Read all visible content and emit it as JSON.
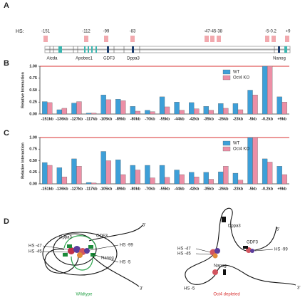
{
  "panel_labels": [
    "A",
    "B",
    "C",
    "D"
  ],
  "gene_map": {
    "hs_label": "HS:",
    "hs_sites": [
      "-151",
      "-112",
      "-99",
      "-83",
      "-47-45-38",
      "-5-0.2",
      "+9"
    ],
    "genes": [
      "Aicda",
      "Apobec1",
      "GDF3",
      "Dppa3",
      "Nanog"
    ]
  },
  "chart_data": [
    {
      "type": "bar",
      "y_label": "Relative Interaction",
      "categories": [
        "-151kb",
        "-136kb",
        "-127kb",
        "-117kb",
        "-105kb",
        "-89kb",
        "-80kb",
        "-70kb",
        "-55kb",
        "-44kb",
        "-42kb",
        "-35kb",
        "-26kb",
        "-23kb",
        "-5kb",
        "-0.2kb",
        "+9kb"
      ],
      "series": [
        {
          "name": "WT",
          "color": "#3d9fd8",
          "values": [
            0.26,
            0.09,
            0.23,
            0.02,
            0.4,
            0.31,
            0.16,
            0.08,
            0.36,
            0.25,
            0.24,
            0.16,
            0.22,
            0.22,
            0.5,
            1.0,
            0.36
          ]
        },
        {
          "name": "Oct4 KO",
          "color": "#ec8fa6",
          "values": [
            0.24,
            0.12,
            0.26,
            0.02,
            0.3,
            0.28,
            0.06,
            0.05,
            0.15,
            0.08,
            0.11,
            0.08,
            0.12,
            0.09,
            0.4,
            1.0,
            0.25
          ]
        }
      ],
      "ylim": [
        0,
        1
      ],
      "yticks": [
        {
          "value": 0,
          "label": "0.00"
        },
        {
          "value": 0.25,
          "label": "0.25"
        },
        {
          "value": 0.5,
          "label": "0.50"
        },
        {
          "value": 0.75,
          "label": "0.75"
        },
        {
          "value": 1,
          "label": "1.00"
        }
      ],
      "legend": "top-right"
    },
    {
      "type": "bar",
      "y_label": "Relative Interaction",
      "categories": [
        "-151kb",
        "-136kb",
        "-127kb",
        "-117kb",
        "-105kb",
        "-89kb",
        "-80kb",
        "-70kb",
        "-55kb",
        "-44kb",
        "-42kb",
        "-35kb",
        "-26kb",
        "-23kb",
        "-5kb",
        "-0.2kb",
        "+9kb"
      ],
      "series": [
        {
          "name": "WT",
          "color": "#3d9fd8",
          "values": [
            0.46,
            0.35,
            0.54,
            0.03,
            0.7,
            0.52,
            0.4,
            0.4,
            0.4,
            0.3,
            0.25,
            0.25,
            0.26,
            0.23,
            1.0,
            0.54,
            0.38
          ]
        },
        {
          "name": "Oct4 KO",
          "color": "#ec8fa6",
          "values": [
            0.4,
            0.15,
            0.38,
            0.02,
            0.5,
            0.2,
            0.3,
            0.13,
            0.14,
            0.2,
            0.15,
            0.1,
            0.38,
            0.08,
            1.0,
            0.47,
            0.2
          ]
        }
      ],
      "ylim": [
        0,
        1
      ],
      "yticks": [
        {
          "value": 0,
          "label": "0.00"
        },
        {
          "value": 0.25,
          "label": "0.25"
        },
        {
          "value": 0.5,
          "label": "0.50"
        },
        {
          "value": 0.75,
          "label": "0.75"
        },
        {
          "value": 1,
          "label": "1.00"
        }
      ],
      "legend": "top-right"
    }
  ],
  "model": {
    "wildtype": {
      "labels": [
        "5'",
        "Dppa3",
        "GDF3",
        "HS -47",
        "HS -45",
        "HS -99",
        "Nanog",
        "HS -5",
        "3'"
      ],
      "caption": "Wildtype"
    },
    "depleted": {
      "labels": [
        "Dppa3",
        "5'",
        "HS -47",
        "HS -45",
        "GDF3",
        "HS -99",
        "Nanog",
        "HS -5",
        "3'"
      ],
      "caption": "Oct4 depleted"
    }
  }
}
